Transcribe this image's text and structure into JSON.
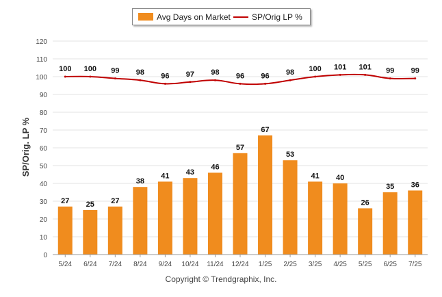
{
  "legend": {
    "bar_label": "Avg Days on Market",
    "line_label": "SP/Orig LP %"
  },
  "footer": {
    "copyright": "Copyright © Trendgraphix, Inc."
  },
  "colors": {
    "bar": "#f08c1e",
    "line": "#c00000",
    "grid": "#e3e3e3",
    "axis": "#666666"
  },
  "chart_data": {
    "type": "bar",
    "title": "",
    "xlabel": "",
    "ylabel": "SP/Orig. LP %",
    "ylim": [
      0,
      120
    ],
    "yticks": [
      0,
      10,
      20,
      30,
      40,
      50,
      60,
      70,
      80,
      90,
      100,
      110,
      120
    ],
    "grid": true,
    "legend_position": "top-center",
    "categories": [
      "5/24",
      "6/24",
      "7/24",
      "8/24",
      "9/24",
      "10/24",
      "11/24",
      "12/24",
      "1/25",
      "2/25",
      "3/25",
      "4/25",
      "5/25",
      "6/25",
      "7/25"
    ],
    "series": [
      {
        "name": "Avg Days on Market",
        "type": "bar",
        "values": [
          27,
          25,
          27,
          38,
          41,
          43,
          46,
          57,
          67,
          53,
          41,
          40,
          26,
          35,
          36
        ]
      },
      {
        "name": "SP/Orig LP %",
        "type": "line",
        "values": [
          100,
          100,
          99,
          98,
          96,
          97,
          98,
          96,
          96,
          98,
          100,
          101,
          101,
          99,
          99
        ]
      }
    ]
  }
}
